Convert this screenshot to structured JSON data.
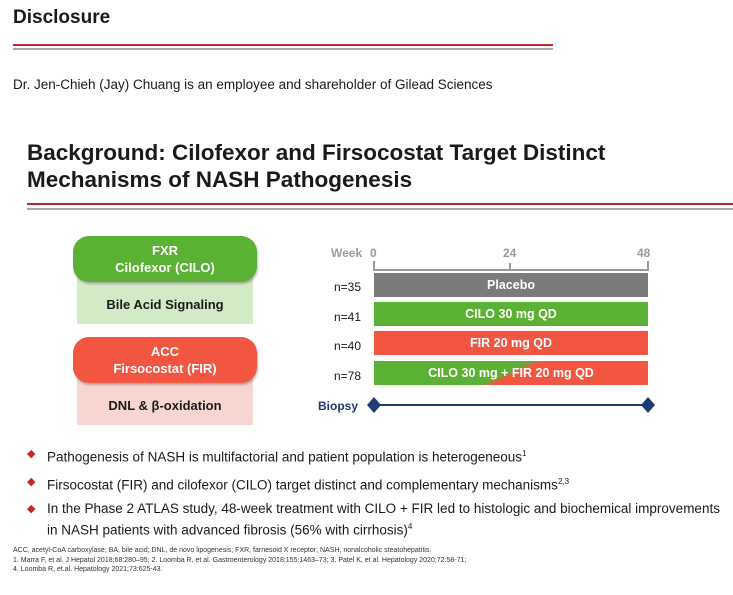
{
  "disclosure": {
    "heading": "Disclosure",
    "text": "Dr. Jen-Chieh (Jay) Chuang is an employee and shareholder of Gilead Sciences"
  },
  "title": {
    "line1": "Background: Cilofexor and Firsocostat Target Distinct",
    "line2": "Mechanisms of NASH Pathogenesis"
  },
  "mechanisms": [
    {
      "target": "FXR",
      "drug": "Cilofexor (CILO)",
      "pathway": "Bile Acid Signaling",
      "color": "#5bb133",
      "light": "#d3eac7"
    },
    {
      "target": "ACC",
      "drug": "Firsocostat (FIR)",
      "pathway": "DNL & β-oxidation",
      "color": "#f25540",
      "light": "#f7d5d0"
    }
  ],
  "design": {
    "week_label": "Week",
    "ticks": [
      "0",
      "24",
      "48"
    ],
    "arms": [
      {
        "n": "n=35",
        "label": "Placebo",
        "color": "#7b7b7b"
      },
      {
        "n": "n=41",
        "label": "CILO 30 mg QD",
        "color": "#5bb133"
      },
      {
        "n": "n=40",
        "label": "FIR 20 mg QD",
        "color": "#f25540"
      },
      {
        "n": "n=78",
        "label": "CILO 30 mg + FIR 20 mg QD",
        "color": "combo"
      }
    ],
    "biopsy_label": "Biopsy",
    "biopsy_color": "#1f3b73"
  },
  "bullets": [
    {
      "text": "Pathogenesis of NASH is multifactorial and patient population is heterogeneous",
      "sup": "1"
    },
    {
      "text": "Firsocostat (FIR) and cilofexor (CILO) target distinct and complementary mechanisms",
      "sup": "2,3"
    },
    {
      "text": "In the Phase 2 ATLAS study, 48-week treatment with CILO + FIR led to histologic and biochemical improvements in NASH patients with advanced fibrosis (56% with cirrhosis)",
      "sup": "4"
    }
  ],
  "footnotes": [
    "ACC, acetyl-CoA carboxylase; BA, bile acid; DNL, de novo lipogenesis; FXR, farnesoid X receptor; NASH, nonalcoholic steatohepatitis.",
    "1. Marra F, et al. J Hepatol 2018;68:280–95; 2. Loomba R, et al. Gastroenterology 2018;155:1463–73; 3. Patel K, et al. Hepatology 2020;72:58-71;",
    "4. Loomba R, et.al. Hepatology 2021;73:625-43."
  ],
  "accent_red": "#c0282f"
}
